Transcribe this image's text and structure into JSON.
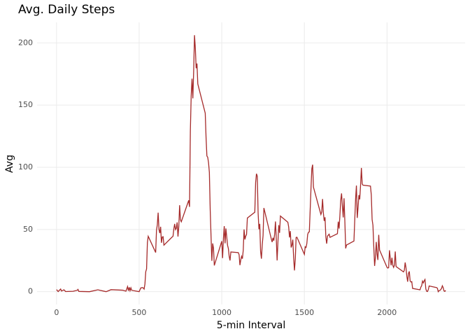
{
  "chart_data": {
    "type": "line",
    "title": "Avg. Daily Steps",
    "x_label": "5-min Interval",
    "y_label": "Avg",
    "color": "#a52a2a",
    "grid": true,
    "xlim": [
      -117.75,
      2472.75
    ],
    "ylim": [
      -10.31,
      216.48
    ],
    "xticks": [
      0,
      500,
      1000,
      1500,
      2000
    ],
    "yticks": [
      0,
      50,
      100,
      150,
      200
    ],
    "x": [
      0,
      10,
      25,
      30,
      45,
      55,
      100,
      125,
      130,
      135,
      200,
      250,
      300,
      330,
      400,
      420,
      430,
      435,
      440,
      445,
      450,
      455,
      500,
      510,
      520,
      525,
      530,
      535,
      540,
      545,
      550,
      555,
      600,
      605,
      610,
      615,
      620,
      625,
      630,
      635,
      640,
      645,
      650,
      700,
      705,
      710,
      715,
      720,
      725,
      730,
      735,
      740,
      745,
      750,
      755,
      800,
      805,
      810,
      815,
      820,
      825,
      830,
      835,
      840,
      845,
      850,
      855,
      900,
      905,
      910,
      915,
      920,
      925,
      930,
      935,
      940,
      945,
      950,
      955,
      1000,
      1005,
      1010,
      1015,
      1020,
      1025,
      1030,
      1035,
      1040,
      1045,
      1050,
      1055,
      1100,
      1105,
      1110,
      1115,
      1120,
      1125,
      1130,
      1135,
      1140,
      1145,
      1150,
      1155,
      1200,
      1205,
      1210,
      1215,
      1220,
      1225,
      1230,
      1235,
      1240,
      1245,
      1250,
      1255,
      1300,
      1305,
      1310,
      1315,
      1320,
      1325,
      1330,
      1335,
      1340,
      1345,
      1350,
      1355,
      1400,
      1405,
      1410,
      1415,
      1420,
      1425,
      1430,
      1435,
      1440,
      1445,
      1450,
      1455,
      1500,
      1505,
      1510,
      1515,
      1520,
      1525,
      1530,
      1535,
      1540,
      1545,
      1550,
      1555,
      1600,
      1605,
      1610,
      1615,
      1620,
      1625,
      1630,
      1635,
      1640,
      1645,
      1650,
      1655,
      1700,
      1705,
      1710,
      1715,
      1720,
      1725,
      1730,
      1735,
      1740,
      1745,
      1750,
      1755,
      1800,
      1805,
      1810,
      1815,
      1820,
      1825,
      1830,
      1835,
      1840,
      1845,
      1850,
      1855,
      1900,
      1905,
      1910,
      1915,
      1920,
      1925,
      1930,
      1935,
      1940,
      1945,
      1950,
      1955,
      2000,
      2005,
      2010,
      2015,
      2020,
      2025,
      2030,
      2035,
      2040,
      2045,
      2050,
      2055,
      2100,
      2105,
      2110,
      2115,
      2120,
      2125,
      2130,
      2135,
      2140,
      2145,
      2150,
      2155,
      2200,
      2205,
      2210,
      2215,
      2220,
      2225,
      2230,
      2235,
      2240,
      2245,
      2250,
      2255,
      2300,
      2305,
      2310,
      2315,
      2320,
      2325,
      2330,
      2335,
      2340,
      2345,
      2350,
      2355
    ],
    "values": [
      1.7,
      0.1,
      2.1,
      0.5,
      1.5,
      0.1,
      0.3,
      1.1,
      1.8,
      0.2,
      0,
      1.5,
      0,
      1.6,
      1.2,
      0.4,
      4.1,
      0.7,
      3.5,
      0.8,
      3.1,
      1.1,
      0,
      3.0,
      3.3,
      3.0,
      2.1,
      6.1,
      16.0,
      18.3,
      39.5,
      44.5,
      31.5,
      49.3,
      53.8,
      63.5,
      50.0,
      47.1,
      52.2,
      39.3,
      44.0,
      44.2,
      37.4,
      44.0,
      44.5,
      50.5,
      54.5,
      49.9,
      51.0,
      55.7,
      44.3,
      52.3,
      69.5,
      57.8,
      56.2,
      73.4,
      68.2,
      129.4,
      157.5,
      171.2,
      155.4,
      177.3,
      206.2,
      195.9,
      179.6,
      183.4,
      167.0,
      143.5,
      124.0,
      109.1,
      108.1,
      103.7,
      95.9,
      66.2,
      45.2,
      24.8,
      38.8,
      35.0,
      21.1,
      40.6,
      27,
      42.4,
      52.7,
      38.9,
      50.8,
      44.3,
      37.4,
      34.7,
      28.3,
      25.1,
      31.9,
      31.4,
      29.7,
      21.3,
      25.5,
      28.4,
      26.5,
      33.3,
      50.0,
      42.0,
      44.6,
      46.0,
      59.2,
      63.9,
      87.7,
      94.8,
      92.8,
      63.4,
      50.2,
      54.5,
      32.4,
      26.5,
      37.7,
      45.1,
      67.3,
      42.3,
      39.9,
      43.3,
      41.0,
      46.2,
      56.4,
      42.8,
      25.1,
      40.0,
      53.5,
      47.3,
      60.8,
      55.8,
      52.0,
      43.6,
      48.7,
      35.5,
      37.5,
      41.8,
      27.5,
      17.1,
      26.1,
      43.6,
      43.8,
      30.0,
      36.1,
      35.5,
      38.8,
      46.0,
      47.8,
      48.1,
      65.3,
      82.9,
      98.7,
      102.1,
      84.0,
      62.1,
      64.1,
      74.5,
      63.2,
      56.9,
      59.8,
      43.9,
      38.6,
      44.7,
      45.5,
      46.2,
      43.7,
      46.6,
      56.3,
      50.7,
      61.2,
      73.4,
      79.0,
      68.9,
      59.7,
      75.1,
      56.5,
      34.8,
      37.5,
      40.7,
      58.0,
      74.7,
      85.3,
      59.3,
      67.8,
      77.7,
      74.2,
      85.3,
      99.5,
      86.6,
      85.6,
      84.9,
      77.8,
      58.0,
      53.4,
      36.3,
      20.7,
      27.4,
      40.0,
      30.2,
      25.5,
      45.7,
      33.5,
      19.6,
      19.0,
      19.3,
      33.3,
      26.8,
      21.2,
      27.3,
      21.3,
      19.5,
      21.3,
      32.3,
      20.2,
      15.9,
      17.2,
      23.5,
      19.2,
      12.5,
      8.0,
      14.7,
      16.3,
      8.7,
      7.8,
      8.1,
      2.6,
      1.5,
      3.7,
      4.8,
      8.5,
      7.1,
      8.7,
      9.8,
      2.2,
      0.3,
      0.1,
      1.6,
      4.6,
      3.3,
      2.8,
      0,
      0.8,
      1.0,
      1.6,
      2.6,
      4.7,
      3.3,
      0.6,
      0.2,
      1.1
    ]
  }
}
